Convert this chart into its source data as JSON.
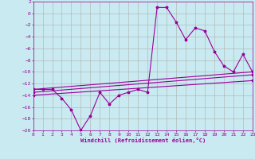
{
  "xlabel": "Windchill (Refroidissement éolien,°C)",
  "background_color": "#c8eaf0",
  "grid_color": "#b0b0b0",
  "line_color": "#990099",
  "xlim": [
    0,
    23
  ],
  "ylim": [
    -20,
    2
  ],
  "xticks": [
    0,
    1,
    2,
    3,
    4,
    5,
    6,
    7,
    8,
    9,
    10,
    11,
    12,
    13,
    14,
    15,
    16,
    17,
    18,
    19,
    20,
    21,
    22,
    23
  ],
  "yticks": [
    2,
    0,
    -2,
    -4,
    -6,
    -8,
    -10,
    -12,
    -14,
    -16,
    -18,
    -20
  ],
  "line1_x": [
    0,
    1,
    2,
    3,
    4,
    5,
    6,
    7,
    8,
    9,
    10,
    11,
    12,
    13,
    14,
    15,
    16,
    17,
    18,
    19,
    20,
    21,
    22,
    23
  ],
  "line1_y": [
    -13,
    -13,
    -13,
    -14.5,
    -16.5,
    -20,
    -17.5,
    -13.5,
    -15.5,
    -14,
    -13.5,
    -13,
    -13.5,
    1,
    1,
    -1.5,
    -4.5,
    -2.5,
    -3,
    -6.5,
    -9,
    -10,
    -7,
    -10
  ],
  "line2_x": [
    0,
    23
  ],
  "line2_y": [
    -13,
    -10
  ],
  "line3_x": [
    0,
    23
  ],
  "line3_y": [
    -13.5,
    -10.5
  ],
  "line4_x": [
    0,
    23
  ],
  "line4_y": [
    -14,
    -11.5
  ]
}
